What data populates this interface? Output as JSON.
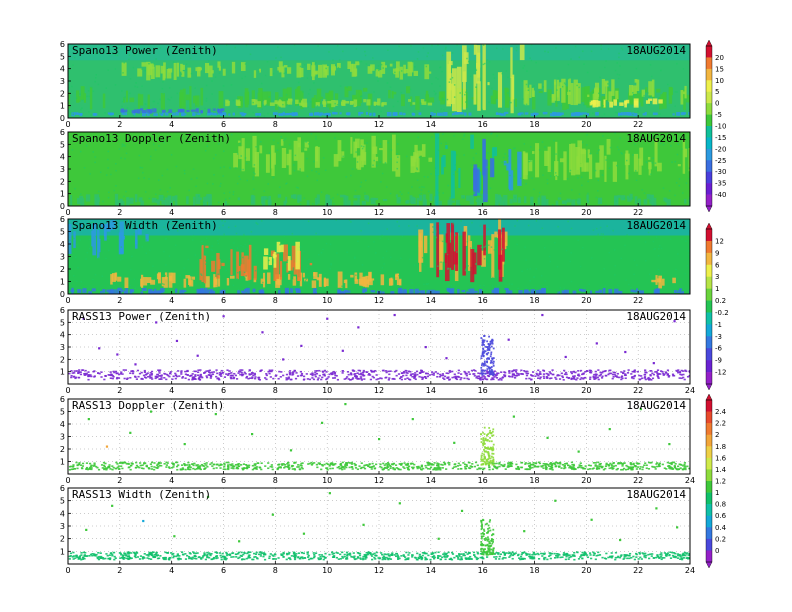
{
  "figure_date": "18AUG2014",
  "colors": {
    "speckle": "#1ec864",
    "grid": "#9a9a9a"
  },
  "colorbars": [
    {
      "id": "cb-power-doppler",
      "ticks": [
        "20",
        "15",
        "10",
        "5",
        "0",
        "-5",
        "-10",
        "-15",
        "-20",
        "-25",
        "-30",
        "-35",
        "-40"
      ],
      "colors": [
        "#d21030",
        "#f07a30",
        "#f2b640",
        "#eef04c",
        "#cce84a",
        "#8edc3c",
        "#3ec83a",
        "#10c09a",
        "#08b6c8",
        "#2c9ae0",
        "#3a6ee0",
        "#4a3edc",
        "#6a1ed2",
        "#9420c8"
      ]
    },
    {
      "id": "cb-width-rasspower",
      "ticks": [
        "12",
        "9",
        "6",
        "3",
        "1",
        "0.2",
        "-0.2",
        "-1",
        "-3",
        "-6",
        "-9",
        "-12"
      ],
      "colors": [
        "#d21030",
        "#f07a30",
        "#f2b640",
        "#eef04c",
        "#b6e446",
        "#6ad43c",
        "#24c454",
        "#10c0a8",
        "#14a8d8",
        "#3478e0",
        "#4a48dc",
        "#6a22d2",
        "#9420c8"
      ]
    },
    {
      "id": "cb-rass-doppler-width",
      "ticks": [
        "2.4",
        "2.2",
        "2",
        "1.8",
        "1.6",
        "1.4",
        "1.2",
        "1",
        "0.8",
        "0.6",
        "0.4",
        "0.2",
        "0"
      ],
      "colors": [
        "#d21030",
        "#e84a2c",
        "#f07a30",
        "#f2a63a",
        "#eed046",
        "#d0ea4a",
        "#8edc3c",
        "#3ec83a",
        "#10c06a",
        "#10c0a8",
        "#14a8d8",
        "#3478e0",
        "#4a48dc",
        "#9420c8"
      ]
    }
  ],
  "chart_data": [
    {
      "type": "heatmap",
      "title": "Spano13 Power (Zenith)",
      "date_label": "18AUG2014",
      "xlim": [
        0,
        24
      ],
      "ylim": [
        0,
        6
      ],
      "x_ticks": [
        0,
        2,
        4,
        6,
        8,
        10,
        12,
        14,
        16,
        18,
        20,
        22
      ],
      "x_tick_labels": [
        "0",
        "2",
        "4",
        "6",
        "8",
        "10",
        "12",
        "14",
        "16",
        "18",
        "20",
        "22"
      ],
      "y_ticks": [
        0,
        1,
        2,
        3,
        4,
        5,
        6
      ],
      "y_tick_labels": [
        "0",
        "1",
        "2",
        "3",
        "4",
        "5",
        "6"
      ],
      "colorbar": "cb-power-doppler",
      "background": "#2fc06e",
      "upper_background": "#22b8a4",
      "features": [
        {
          "x": [
            0,
            24
          ],
          "y": [
            0.8,
            2.6
          ],
          "color": "#3ec83a"
        },
        {
          "x": [
            6,
            14
          ],
          "y": [
            1.0,
            1.6
          ],
          "color": "#8edc3c"
        },
        {
          "x": [
            14,
            17.5
          ],
          "y": [
            0.5,
            6.0
          ],
          "color": "#cce84a"
        },
        {
          "x": [
            17.5,
            24
          ],
          "y": [
            1.0,
            3.2
          ],
          "color": "#8edc3c"
        },
        {
          "x": [
            20,
            23
          ],
          "y": [
            1.0,
            1.6
          ],
          "color": "#eef04c"
        },
        {
          "x": [
            2,
            14
          ],
          "y": [
            3.2,
            4.6
          ],
          "color": "#8edc3c"
        },
        {
          "x": [
            0,
            24
          ],
          "y": [
            0.3,
            0.5
          ],
          "color": "#2c9ae0"
        },
        {
          "x": [
            2,
            6
          ],
          "y": [
            0.5,
            0.8
          ],
          "color": "#3a6ee0"
        }
      ]
    },
    {
      "type": "heatmap",
      "title": "Spano13 Doppler (Zenith)",
      "date_label": "18AUG2014",
      "xlim": [
        0,
        24
      ],
      "ylim": [
        0,
        6
      ],
      "x_ticks": [
        0,
        2,
        4,
        6,
        8,
        10,
        12,
        14,
        16,
        18,
        20,
        22
      ],
      "x_tick_labels": [
        "0",
        "2",
        "4",
        "6",
        "8",
        "10",
        "12",
        "14",
        "16",
        "18",
        "20",
        "22"
      ],
      "y_ticks": [
        0,
        1,
        2,
        3,
        4,
        5,
        6
      ],
      "y_tick_labels": [
        "0",
        "1",
        "2",
        "3",
        "4",
        "5",
        "6"
      ],
      "colorbar": "cb-power-doppler",
      "background": "#3ec83a",
      "upper_background": "#3ec83a",
      "features": [
        {
          "x": [
            0,
            24
          ],
          "y": [
            0.0,
            1.0
          ],
          "color": "#2fc06e"
        },
        {
          "x": [
            6,
            14
          ],
          "y": [
            2.5,
            5.8
          ],
          "color": "#8edc3c"
        },
        {
          "x": [
            14,
            16.5
          ],
          "y": [
            0.0,
            6.0
          ],
          "color": "#10c09a"
        },
        {
          "x": [
            15.6,
            16.3
          ],
          "y": [
            0.0,
            6.0
          ],
          "color": "#3a6ee0"
        },
        {
          "x": [
            16.8,
            17.4
          ],
          "y": [
            1.0,
            5.0
          ],
          "color": "#2c9ae0"
        },
        {
          "x": [
            17.5,
            24
          ],
          "y": [
            2.0,
            5.5
          ],
          "color": "#8edc3c"
        }
      ]
    },
    {
      "type": "heatmap",
      "title": "Spano13 Width (Zenith)",
      "date_label": "18AUG2014",
      "xlim": [
        0,
        24
      ],
      "ylim": [
        0,
        6
      ],
      "x_ticks": [
        0,
        2,
        4,
        6,
        8,
        10,
        12,
        14,
        16,
        18,
        20,
        22
      ],
      "x_tick_labels": [
        "0",
        "2",
        "4",
        "6",
        "8",
        "10",
        "12",
        "14",
        "16",
        "18",
        "20",
        "22"
      ],
      "y_ticks": [
        0,
        1,
        2,
        3,
        4,
        5,
        6
      ],
      "y_tick_labels": [
        "0",
        "1",
        "2",
        "3",
        "4",
        "5",
        "6"
      ],
      "colorbar": "cb-width-rasspower",
      "background": "#24c454",
      "upper_background": "#14a8d8",
      "features": [
        {
          "x": [
            0,
            24
          ],
          "y": [
            0.0,
            0.5
          ],
          "color": "#3478e0"
        },
        {
          "x": [
            0,
            3
          ],
          "y": [
            3.0,
            6.0
          ],
          "color": "#2c9ae0"
        },
        {
          "x": [
            1,
            13
          ],
          "y": [
            0.6,
            1.8
          ],
          "color": "#f2b640"
        },
        {
          "x": [
            5,
            9.5
          ],
          "y": [
            1.0,
            4.0
          ],
          "color": "#f07a30"
        },
        {
          "x": [
            7.5,
            9
          ],
          "y": [
            2.0,
            4.2
          ],
          "color": "#eef04c"
        },
        {
          "x": [
            13.5,
            17
          ],
          "y": [
            0.6,
            6.0
          ],
          "color": "#f2b640"
        },
        {
          "x": [
            14.2,
            16.8
          ],
          "y": [
            1.0,
            6.0
          ],
          "color": "#d21030"
        },
        {
          "x": [
            22.5,
            23.5
          ],
          "y": [
            0.6,
            1.6
          ],
          "color": "#f2b640"
        }
      ]
    },
    {
      "type": "scatter",
      "title": "RASS13 Power (Zenith)",
      "date_label": "18AUG2014",
      "xlim": [
        0,
        24
      ],
      "ylim": [
        0,
        6
      ],
      "x_ticks": [
        0,
        2,
        4,
        6,
        8,
        10,
        12,
        14,
        16,
        18,
        20,
        22,
        24
      ],
      "x_tick_labels": [
        "0",
        "2",
        "4",
        "6",
        "8",
        "10",
        "12",
        "14",
        "16",
        "18",
        "20",
        "22",
        "24"
      ],
      "y_ticks": [
        1,
        2,
        3,
        4,
        5,
        6
      ],
      "y_tick_labels": [
        "1",
        "2",
        "3",
        "4",
        "5",
        "6"
      ],
      "grid": true,
      "colorbar": "cb-width-rasspower",
      "band": {
        "x": [
          0,
          24
        ],
        "y": [
          0.4,
          1.2
        ],
        "color": "#7a2ad2"
      },
      "burst": {
        "x": [
          15.9,
          16.4
        ],
        "y": [
          0.8,
          4.0
        ],
        "color": "#4a48dc"
      },
      "points": [
        {
          "x": 0.6,
          "y": 5.3,
          "c": "#7a2ad2"
        },
        {
          "x": 1.2,
          "y": 2.9,
          "c": "#7a2ad2"
        },
        {
          "x": 1.9,
          "y": 2.4,
          "c": "#7a2ad2"
        },
        {
          "x": 2.6,
          "y": 1.6,
          "c": "#7a2ad2"
        },
        {
          "x": 3.4,
          "y": 5.0,
          "c": "#7a2ad2"
        },
        {
          "x": 4.2,
          "y": 3.5,
          "c": "#7a2ad2"
        },
        {
          "x": 5.0,
          "y": 2.3,
          "c": "#7a2ad2"
        },
        {
          "x": 6.0,
          "y": 5.5,
          "c": "#7a2ad2"
        },
        {
          "x": 7.5,
          "y": 4.2,
          "c": "#7a2ad2"
        },
        {
          "x": 8.3,
          "y": 2.0,
          "c": "#7a2ad2"
        },
        {
          "x": 9.0,
          "y": 3.1,
          "c": "#7a2ad2"
        },
        {
          "x": 10.0,
          "y": 5.3,
          "c": "#7a2ad2"
        },
        {
          "x": 10.6,
          "y": 2.7,
          "c": "#7a2ad2"
        },
        {
          "x": 11.2,
          "y": 4.6,
          "c": "#7a2ad2"
        },
        {
          "x": 12.6,
          "y": 5.6,
          "c": "#7a2ad2"
        },
        {
          "x": 13.8,
          "y": 3.0,
          "c": "#7a2ad2"
        },
        {
          "x": 14.6,
          "y": 2.1,
          "c": "#7a2ad2"
        },
        {
          "x": 17.0,
          "y": 3.6,
          "c": "#7a2ad2"
        },
        {
          "x": 18.3,
          "y": 5.6,
          "c": "#7a2ad2"
        },
        {
          "x": 19.2,
          "y": 2.2,
          "c": "#7a2ad2"
        },
        {
          "x": 20.4,
          "y": 3.3,
          "c": "#7a2ad2"
        },
        {
          "x": 21.5,
          "y": 2.6,
          "c": "#7a2ad2"
        },
        {
          "x": 22.6,
          "y": 1.7,
          "c": "#7a2ad2"
        },
        {
          "x": 23.4,
          "y": 5.1,
          "c": "#7a2ad2"
        }
      ]
    },
    {
      "type": "scatter",
      "title": "RASS13 Doppler (Zenith)",
      "date_label": "18AUG2014",
      "xlim": [
        0,
        24
      ],
      "ylim": [
        0,
        6
      ],
      "x_ticks": [
        0,
        2,
        4,
        6,
        8,
        10,
        12,
        14,
        16,
        18,
        20,
        22,
        24
      ],
      "x_tick_labels": [
        "0",
        "2",
        "4",
        "6",
        "8",
        "10",
        "12",
        "14",
        "16",
        "18",
        "20",
        "22",
        "24"
      ],
      "y_ticks": [
        1,
        2,
        3,
        4,
        5,
        6
      ],
      "y_tick_labels": [
        "1",
        "2",
        "3",
        "4",
        "5",
        "6"
      ],
      "grid": true,
      "colorbar": "cb-rass-doppler-width",
      "band": {
        "x": [
          0,
          24
        ],
        "y": [
          0.4,
          1.0
        ],
        "color": "#3ec83a"
      },
      "burst": {
        "x": [
          15.9,
          16.4
        ],
        "y": [
          0.8,
          3.8
        ],
        "color": "#8edc3c"
      },
      "points": [
        {
          "x": 0.8,
          "y": 4.4,
          "c": "#3ec83a"
        },
        {
          "x": 1.5,
          "y": 2.2,
          "c": "#f2a63a"
        },
        {
          "x": 2.4,
          "y": 3.3,
          "c": "#3ec83a"
        },
        {
          "x": 3.2,
          "y": 5.0,
          "c": "#3ec83a"
        },
        {
          "x": 4.5,
          "y": 2.4,
          "c": "#3ec83a"
        },
        {
          "x": 5.7,
          "y": 4.8,
          "c": "#3ec83a"
        },
        {
          "x": 7.1,
          "y": 3.2,
          "c": "#3ec83a"
        },
        {
          "x": 8.6,
          "y": 1.9,
          "c": "#3ec83a"
        },
        {
          "x": 9.8,
          "y": 4.1,
          "c": "#3ec83a"
        },
        {
          "x": 10.7,
          "y": 5.6,
          "c": "#3ec83a"
        },
        {
          "x": 12.0,
          "y": 2.8,
          "c": "#3ec83a"
        },
        {
          "x": 13.3,
          "y": 4.4,
          "c": "#3ec83a"
        },
        {
          "x": 14.9,
          "y": 2.5,
          "c": "#3ec83a"
        },
        {
          "x": 17.2,
          "y": 4.6,
          "c": "#3ec83a"
        },
        {
          "x": 18.5,
          "y": 2.9,
          "c": "#3ec83a"
        },
        {
          "x": 19.7,
          "y": 1.8,
          "c": "#3ec83a"
        },
        {
          "x": 20.9,
          "y": 3.6,
          "c": "#3ec83a"
        },
        {
          "x": 22.1,
          "y": 5.2,
          "c": "#3ec83a"
        },
        {
          "x": 23.2,
          "y": 2.4,
          "c": "#3ec83a"
        }
      ]
    },
    {
      "type": "scatter",
      "title": "RASS13 Width (Zenith)",
      "date_label": "18AUG2014",
      "xlim": [
        0,
        24
      ],
      "ylim": [
        0,
        6
      ],
      "x_ticks": [
        0,
        2,
        4,
        6,
        8,
        10,
        12,
        14,
        16,
        18,
        20,
        22,
        24
      ],
      "x_tick_labels": [
        "0",
        "2",
        "4",
        "6",
        "8",
        "10",
        "12",
        "14",
        "16",
        "18",
        "20",
        "22",
        "24"
      ],
      "y_ticks": [
        1,
        2,
        3,
        4,
        5,
        6
      ],
      "y_tick_labels": [
        "1",
        "2",
        "3",
        "4",
        "5",
        "6"
      ],
      "grid": true,
      "colorbar": "cb-rass-doppler-width",
      "band": {
        "x": [
          0,
          24
        ],
        "y": [
          0.4,
          1.0
        ],
        "color": "#10c06a"
      },
      "burst": {
        "x": [
          15.9,
          16.4
        ],
        "y": [
          0.8,
          3.6
        ],
        "color": "#3ec83a"
      },
      "points": [
        {
          "x": 0.7,
          "y": 2.7,
          "c": "#3ec83a"
        },
        {
          "x": 1.7,
          "y": 4.6,
          "c": "#3ec83a"
        },
        {
          "x": 2.9,
          "y": 3.4,
          "c": "#14a8d8"
        },
        {
          "x": 4.1,
          "y": 2.2,
          "c": "#3ec83a"
        },
        {
          "x": 5.4,
          "y": 5.3,
          "c": "#3ec83a"
        },
        {
          "x": 6.6,
          "y": 1.8,
          "c": "#3ec83a"
        },
        {
          "x": 7.9,
          "y": 3.9,
          "c": "#3ec83a"
        },
        {
          "x": 9.1,
          "y": 2.4,
          "c": "#3ec83a"
        },
        {
          "x": 10.1,
          "y": 5.6,
          "c": "#3ec83a"
        },
        {
          "x": 11.4,
          "y": 3.1,
          "c": "#3ec83a"
        },
        {
          "x": 12.8,
          "y": 4.8,
          "c": "#3ec83a"
        },
        {
          "x": 14.3,
          "y": 2.0,
          "c": "#3ec83a"
        },
        {
          "x": 15.2,
          "y": 4.2,
          "c": "#3ec83a"
        },
        {
          "x": 17.6,
          "y": 2.6,
          "c": "#3ec83a"
        },
        {
          "x": 18.8,
          "y": 5.0,
          "c": "#3ec83a"
        },
        {
          "x": 20.2,
          "y": 3.5,
          "c": "#3ec83a"
        },
        {
          "x": 21.3,
          "y": 1.9,
          "c": "#3ec83a"
        },
        {
          "x": 22.7,
          "y": 4.4,
          "c": "#3ec83a"
        },
        {
          "x": 23.5,
          "y": 2.9,
          "c": "#3ec83a"
        }
      ]
    }
  ]
}
